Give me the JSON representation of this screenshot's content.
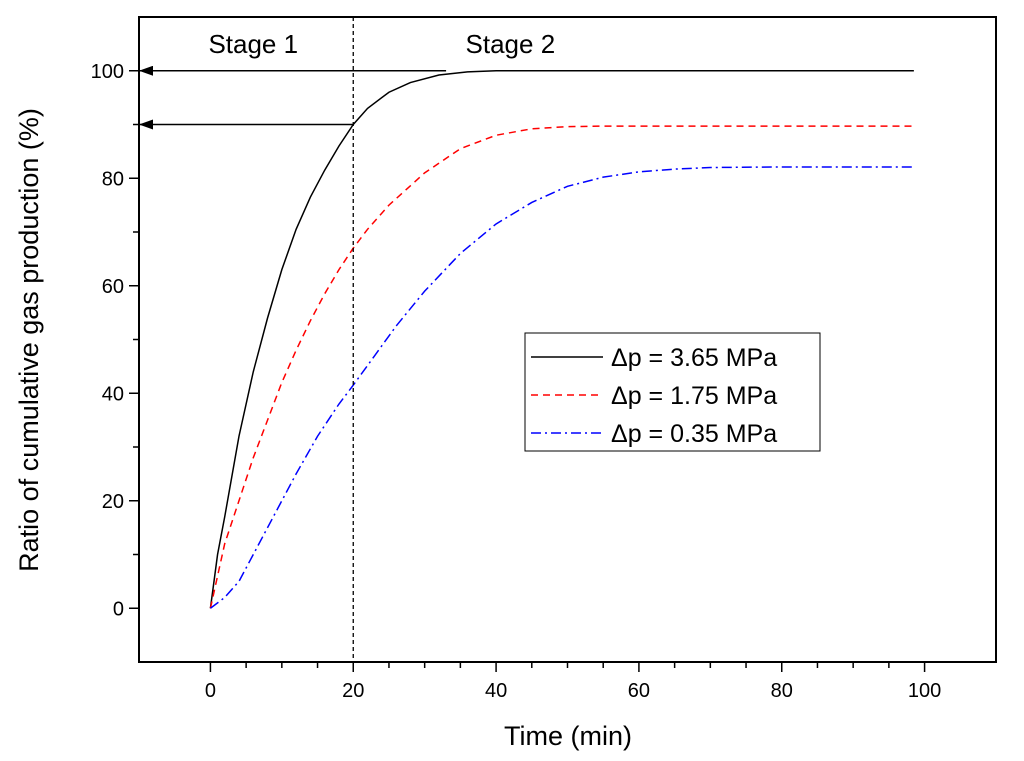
{
  "chart_data": {
    "type": "line",
    "xlabel": "Time (min)",
    "ylabel": "Ratio of cumulative gas production (%)",
    "xlim": [
      -10,
      110
    ],
    "ylim": [
      -10,
      110
    ],
    "xticks": [
      0,
      20,
      40,
      60,
      80,
      100
    ],
    "yticks": [
      0,
      20,
      40,
      60,
      80,
      100
    ],
    "x_tick_labels": [
      "0",
      "20",
      "40",
      "60",
      "80",
      "100"
    ],
    "y_tick_labels": [
      "0",
      "20",
      "40",
      "60",
      "80",
      "100"
    ],
    "x_minor_step": 5,
    "y_minor_step": 10,
    "grid": false,
    "legend_position": "center-right",
    "stage_divider_x": 20,
    "annotations": [
      {
        "text": "Stage 1",
        "x": 6,
        "y": 105
      },
      {
        "text": "Stage 2",
        "x": 42,
        "y": 105
      }
    ],
    "arrows": [
      {
        "from": [
          33,
          100
        ],
        "to": [
          -10,
          100
        ]
      },
      {
        "from": [
          20,
          90
        ],
        "to": [
          -10,
          90
        ]
      }
    ],
    "series": [
      {
        "name": "Δp = 3.65 MPa",
        "color": "#000000",
        "dash": "solid",
        "x": [
          0,
          1,
          2,
          4,
          6,
          8,
          10,
          12,
          14,
          16,
          18,
          20,
          22,
          25,
          28,
          32,
          36,
          40,
          50,
          60,
          70,
          80,
          90,
          98.5
        ],
        "y": [
          0,
          10,
          17,
          32,
          44,
          54,
          63,
          70.5,
          76.5,
          81.5,
          86,
          90,
          93,
          96,
          97.8,
          99.2,
          99.8,
          100,
          100,
          100,
          100,
          100,
          100,
          100
        ]
      },
      {
        "name": "Δp = 1.75 MPa",
        "color": "#ff0000",
        "dash": "dash",
        "x": [
          0,
          2,
          4,
          6,
          8,
          10,
          12,
          14,
          16,
          18,
          20,
          22,
          25,
          30,
          35,
          40,
          45,
          50,
          55,
          60,
          70,
          80,
          90,
          98.5
        ],
        "y": [
          0,
          12,
          20,
          28,
          35,
          42,
          48,
          53.5,
          58.5,
          63,
          67,
          70.5,
          75,
          81,
          85.5,
          88,
          89.2,
          89.6,
          89.7,
          89.7,
          89.7,
          89.7,
          89.7,
          89.7
        ]
      },
      {
        "name": "Δp = 0.35 MPa",
        "color": "#0000ff",
        "dash": "dashdot",
        "x": [
          0,
          2,
          4,
          6,
          8,
          10,
          12,
          15,
          18,
          20,
          23,
          26,
          30,
          35,
          40,
          45,
          50,
          55,
          60,
          65,
          70,
          80,
          90,
          98.5
        ],
        "y": [
          0,
          2,
          5,
          10,
          15,
          20,
          25,
          32,
          38,
          41.5,
          47,
          52.5,
          59,
          66,
          71.5,
          75.5,
          78.5,
          80.2,
          81.2,
          81.7,
          82,
          82.1,
          82.1,
          82.1
        ]
      }
    ]
  }
}
